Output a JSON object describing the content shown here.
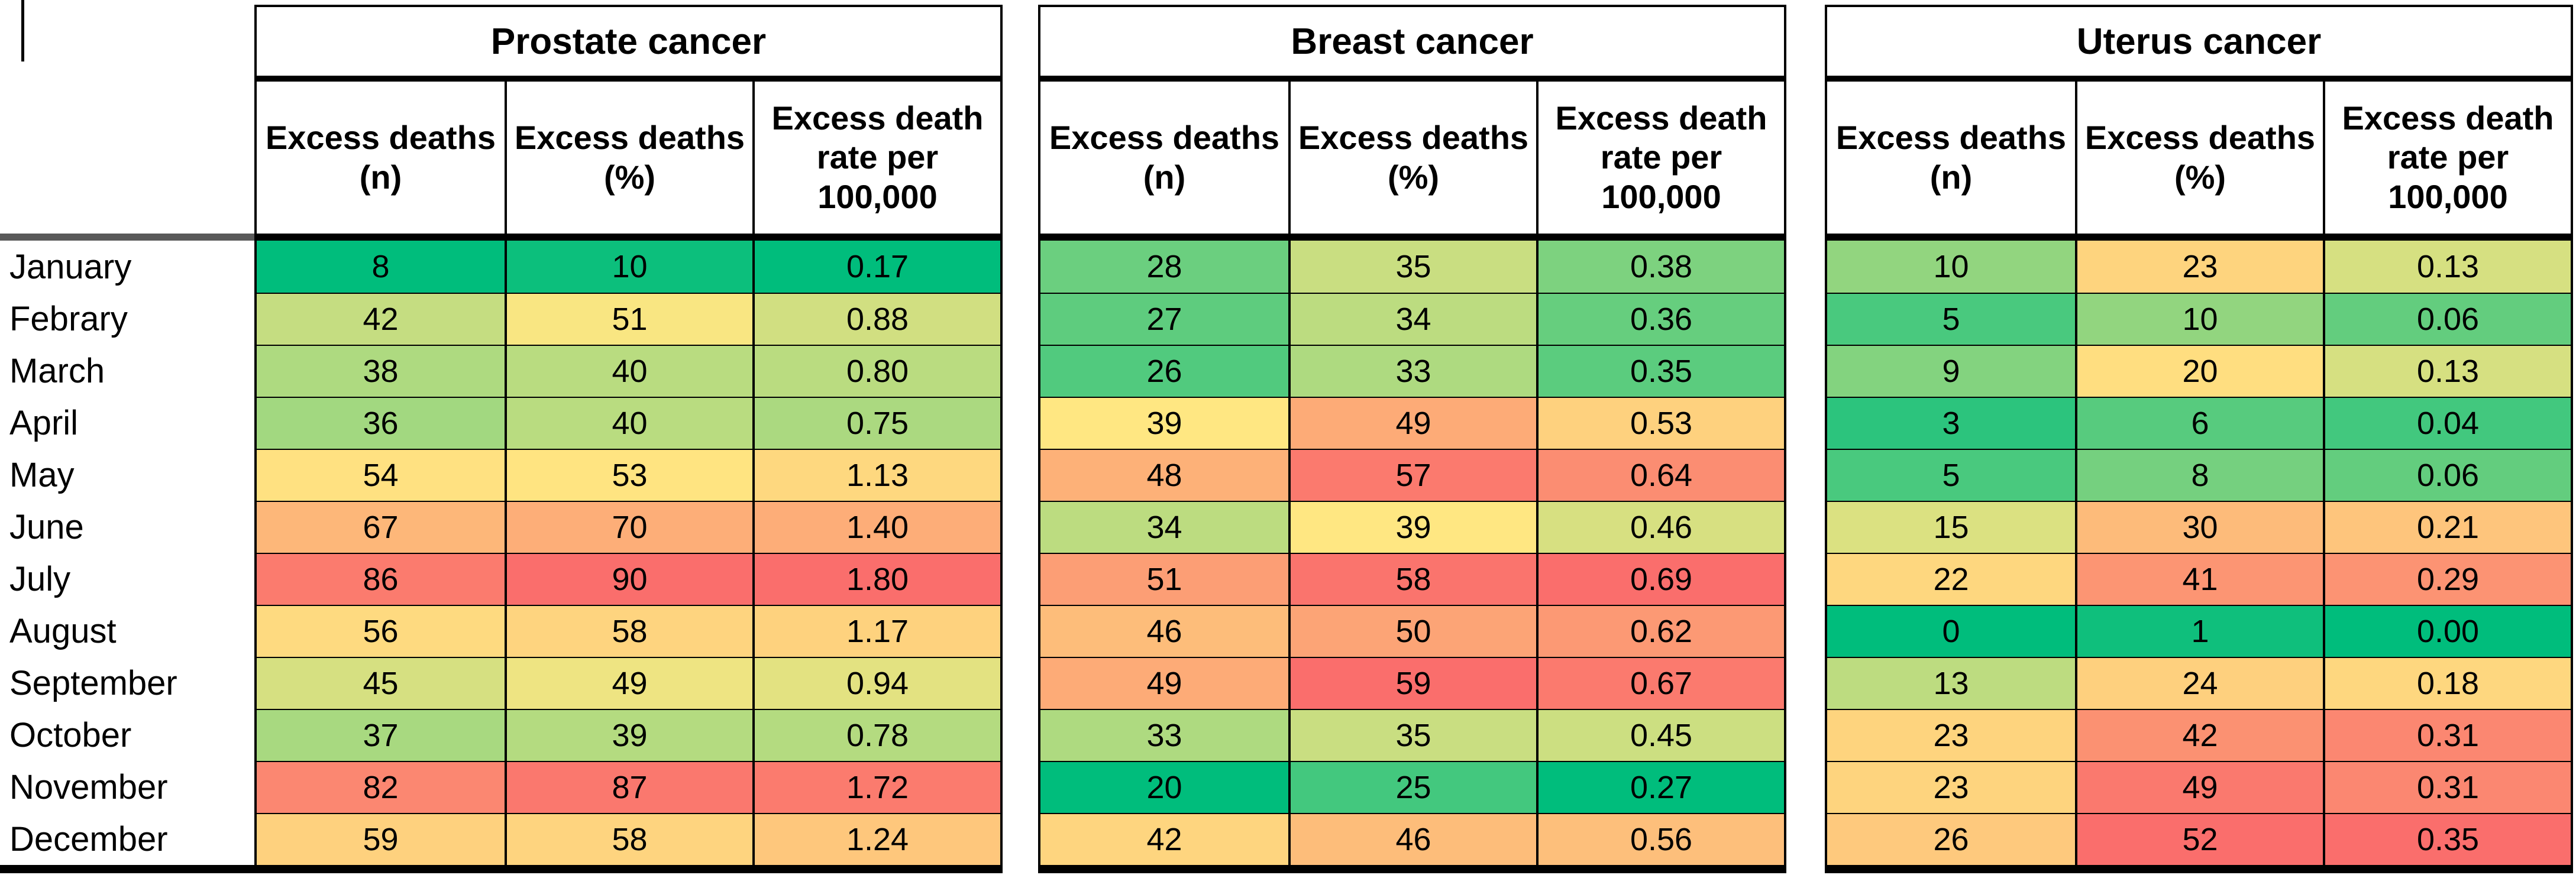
{
  "chart_data": {
    "type": "heatmap",
    "rows": [
      "January",
      "Febrary",
      "March",
      "April",
      "May",
      "June",
      "July",
      "August",
      "September",
      "October",
      "November",
      "December"
    ],
    "groups": [
      {
        "title": "Prostate cancer",
        "columns": [
          "Excess deaths (n)",
          "Excess deaths (%)",
          "Excess death rate per 100,000"
        ],
        "rows": [
          [
            "8",
            "10",
            "0.17"
          ],
          [
            "42",
            "51",
            "0.88"
          ],
          [
            "38",
            "40",
            "0.80"
          ],
          [
            "36",
            "40",
            "0.75"
          ],
          [
            "54",
            "53",
            "1.13"
          ],
          [
            "67",
            "70",
            "1.40"
          ],
          [
            "86",
            "90",
            "1.80"
          ],
          [
            "56",
            "58",
            "1.17"
          ],
          [
            "45",
            "49",
            "0.94"
          ],
          [
            "37",
            "39",
            "0.78"
          ],
          [
            "82",
            "87",
            "1.72"
          ],
          [
            "59",
            "58",
            "1.24"
          ]
        ]
      },
      {
        "title": "Breast cancer",
        "columns": [
          "Excess deaths (n)",
          "Excess deaths (%)",
          "Excess death rate per 100,000"
        ],
        "rows": [
          [
            "28",
            "35",
            "0.38"
          ],
          [
            "27",
            "34",
            "0.36"
          ],
          [
            "26",
            "33",
            "0.35"
          ],
          [
            "39",
            "49",
            "0.53"
          ],
          [
            "48",
            "57",
            "0.64"
          ],
          [
            "34",
            "39",
            "0.46"
          ],
          [
            "51",
            "58",
            "0.69"
          ],
          [
            "46",
            "50",
            "0.62"
          ],
          [
            "49",
            "59",
            "0.67"
          ],
          [
            "33",
            "35",
            "0.45"
          ],
          [
            "20",
            "25",
            "0.27"
          ],
          [
            "42",
            "46",
            "0.56"
          ]
        ]
      },
      {
        "title": "Uterus cancer",
        "columns": [
          "Excess deaths (n)",
          "Excess deaths (%)",
          "Excess death rate per 100,000"
        ],
        "rows": [
          [
            "10",
            "23",
            "0.13"
          ],
          [
            "5",
            "10",
            "0.06"
          ],
          [
            "9",
            "20",
            "0.13"
          ],
          [
            "3",
            "6",
            "0.04"
          ],
          [
            "5",
            "8",
            "0.06"
          ],
          [
            "15",
            "30",
            "0.21"
          ],
          [
            "22",
            "41",
            "0.29"
          ],
          [
            "0",
            "1",
            "0.00"
          ],
          [
            "13",
            "24",
            "0.18"
          ],
          [
            "23",
            "42",
            "0.31"
          ],
          [
            "23",
            "49",
            "0.31"
          ],
          [
            "26",
            "52",
            "0.35"
          ]
        ]
      }
    ],
    "color_scale": {
      "green": "#00BD7C",
      "yellow": "#FFE782",
      "red": "#FA6E6C",
      "midpoint": "50th percentile",
      "scope": "count and percent columns share one scale per cancer; rate column has its own scale"
    }
  }
}
